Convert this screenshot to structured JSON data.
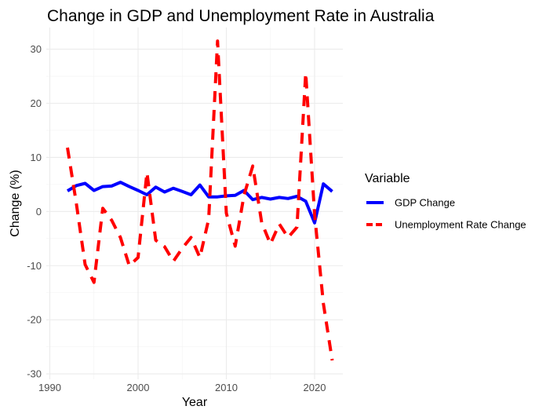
{
  "chart_data": {
    "type": "line",
    "title": "Change in GDP and Unemployment Rate in Australia",
    "xlabel": "Year",
    "ylabel": "Change (%)",
    "xlim": [
      1989.6,
      2023.2
    ],
    "ylim": [
      -31,
      34
    ],
    "x_ticks": [
      1990,
      2000,
      2010,
      2020
    ],
    "y_ticks": [
      -30,
      -20,
      -10,
      0,
      10,
      20,
      30
    ],
    "grid": true,
    "legend": {
      "title": "Variable",
      "position": "right"
    },
    "x": [
      1992,
      1993,
      1994,
      1995,
      1996,
      1997,
      1998,
      1999,
      2000,
      2001,
      2002,
      2003,
      2004,
      2005,
      2006,
      2007,
      2008,
      2009,
      2010,
      2011,
      2012,
      2013,
      2014,
      2015,
      2016,
      2017,
      2018,
      2019,
      2020,
      2021,
      2022
    ],
    "series": [
      {
        "name": "GDP Change",
        "color": "#0000ff",
        "style": "solid",
        "values": [
          3.8,
          4.8,
          5.2,
          3.9,
          4.6,
          4.7,
          5.4,
          4.6,
          3.9,
          3.1,
          4.5,
          3.6,
          4.3,
          3.7,
          3.1,
          4.9,
          2.7,
          2.7,
          2.9,
          3.0,
          3.9,
          2.2,
          2.6,
          2.3,
          2.6,
          2.4,
          2.8,
          1.9,
          -2.1,
          5.1,
          3.7
        ]
      },
      {
        "name": "Unemployment Rate Change",
        "color": "#ff0000",
        "style": "dashed",
        "values": [
          11.8,
          1.5,
          -9.8,
          -13.1,
          0.6,
          -1.6,
          -4.8,
          -10.0,
          -8.5,
          7.2,
          -5.3,
          -6.5,
          -9.2,
          -6.8,
          -4.8,
          -8.5,
          -1.4,
          31.5,
          -0.3,
          -6.4,
          3.0,
          8.4,
          -2.0,
          -6.0,
          -2.3,
          -4.8,
          -2.9,
          25.6,
          -0.5,
          -17.0,
          -27.5
        ]
      }
    ]
  }
}
